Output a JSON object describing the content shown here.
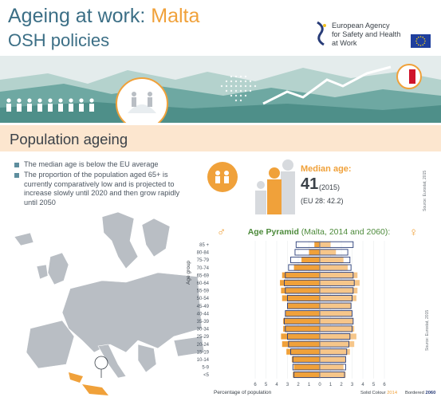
{
  "header": {
    "title_prefix": "Ageing at work: ",
    "title_country": "Malta",
    "subtitle": "OSH policies",
    "agency_lines": [
      "European Agency",
      "for Safety and Health",
      "at Work"
    ],
    "logo_icon": "eu-osha-logo-icon",
    "flag_icon": "eu-flag-icon"
  },
  "section": {
    "title": "Population ageing"
  },
  "bullets": [
    "The median age is below the EU average",
    "The proportion of the population aged 65+ is currently comparatively low and is projected to increase slowly until 2020 and then grow rapidly until 2050"
  ],
  "median": {
    "label": "Median age:",
    "value": "41",
    "year": "(2015)",
    "eu": "(EU 28: 42.2)",
    "source": "Source: Eurostat, 2015"
  },
  "pyramid": {
    "title_bold": "Age Pyramid",
    "title_rest": " (Malta, 2014 and 2060):",
    "male_icon": "male-symbol-icon",
    "female_icon": "female-symbol-icon",
    "source": "Source: Eurostat, 2015"
  },
  "colors": {
    "teal": "#3c6f86",
    "orange": "#f0a13a",
    "light_orange": "#fce6cf",
    "banner": "#5e9e98",
    "map_grey": "#b9bec4",
    "malta": "#f0a13a",
    "navy": "#283c78",
    "green": "#4c8a3a"
  },
  "chart_data": {
    "type": "bar",
    "title": "Age Pyramid (Malta, 2014 and 2060):",
    "ylabel": "Age group",
    "xlabel": "Percentage of population",
    "categories": [
      "<5",
      "5-9",
      "10-14",
      "15-19",
      "20-24",
      "25-29",
      "30-34",
      "35-39",
      "40-44",
      "45-49",
      "50-54",
      "55-59",
      "60-64",
      "65-69",
      "70-74",
      "75-79",
      "80-84",
      "85 +"
    ],
    "xlim": [
      -6,
      6
    ],
    "x_ticks": [
      "6",
      "5",
      "4",
      "3",
      "2",
      "1",
      "0",
      "1",
      "2",
      "3",
      "4",
      "5",
      "6"
    ],
    "legend": [
      "Solid Colour 2014",
      "Bordered 2060"
    ],
    "legend_year_solid": "2014",
    "legend_year_bordered": "2060",
    "series": [
      {
        "name": "Solid Colour 2014 (male)",
        "values": [
          2.5,
          2.4,
          2.6,
          3.1,
          3.5,
          3.6,
          3.4,
          3.4,
          3.2,
          3.0,
          3.5,
          3.6,
          3.7,
          3.5,
          2.4,
          1.7,
          1.0,
          0.5
        ]
      },
      {
        "name": "Solid Colour 2014 (female)",
        "values": [
          2.4,
          2.2,
          2.4,
          2.8,
          3.2,
          3.4,
          3.2,
          3.1,
          3.0,
          2.9,
          3.4,
          3.5,
          3.7,
          3.5,
          2.6,
          2.2,
          1.5,
          1.0
        ]
      },
      {
        "name": "Bordered 2060 (male)",
        "values": [
          2.4,
          2.5,
          2.5,
          2.7,
          2.9,
          3.0,
          3.2,
          3.3,
          3.2,
          3.0,
          3.0,
          3.2,
          3.3,
          3.2,
          2.9,
          2.7,
          2.3,
          2.2
        ]
      },
      {
        "name": "Bordered 2060 (female)",
        "values": [
          2.3,
          2.4,
          2.4,
          2.5,
          2.7,
          2.8,
          3.0,
          3.1,
          3.0,
          2.9,
          3.0,
          3.1,
          3.2,
          3.1,
          2.9,
          2.8,
          2.6,
          3.1
        ]
      }
    ]
  }
}
